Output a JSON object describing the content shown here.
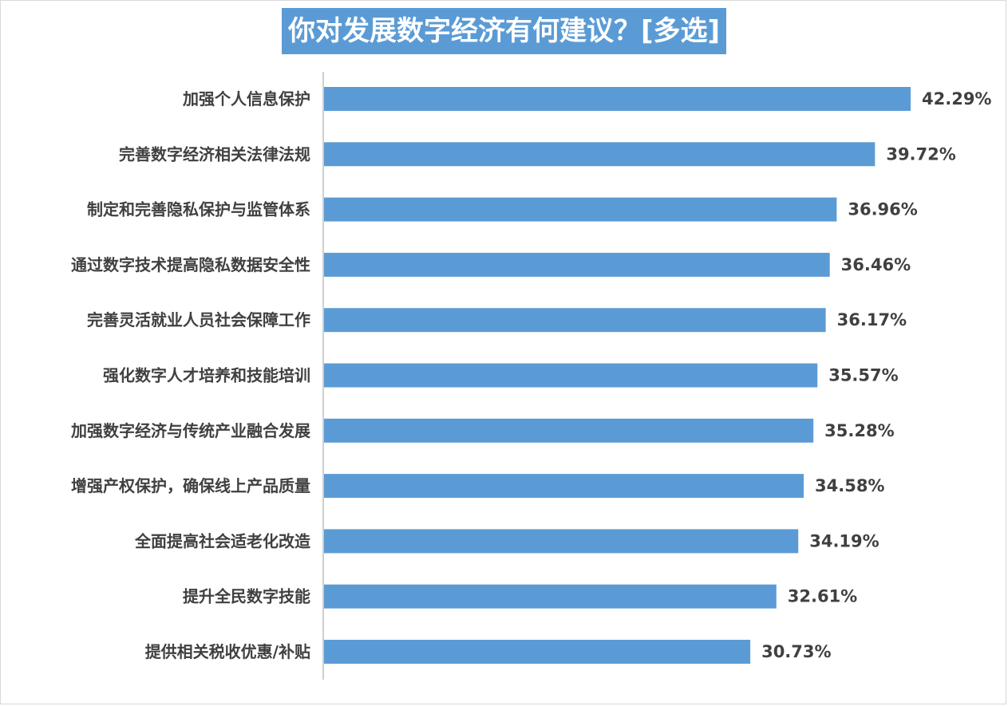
{
  "colors": {
    "bar": "#5b9bd5",
    "title_bg": "#5b9bd5",
    "title_text": "#ffffff",
    "label_text": "#404040",
    "axis": "#bfbfbf"
  },
  "chart_data": {
    "type": "bar",
    "orientation": "horizontal",
    "title": "你对发展数字经济有何建议？[多选]",
    "categories": [
      "加强个人信息保护",
      "完善数字经济相关法律法规",
      "制定和完善隐私保护与监管体系",
      "通过数字技术提高隐私数据安全性",
      "完善灵活就业人员社会保障工作",
      "强化数字人才培养和技能培训",
      "加强数字经济与传统产业融合发展",
      "增强产权保护，确保线上产品质量",
      "全面提高社会适老化改造",
      "提升全民数字技能",
      "提供相关税收优惠/补贴"
    ],
    "values": [
      42.29,
      39.72,
      36.96,
      36.46,
      36.17,
      35.57,
      35.28,
      34.58,
      34.19,
      32.61,
      30.73
    ],
    "value_labels": [
      "42.29%",
      "39.72%",
      "36.96%",
      "36.46%",
      "36.17%",
      "35.57%",
      "35.28%",
      "34.58%",
      "34.19%",
      "32.61%",
      "30.73%"
    ],
    "unit": "%",
    "xlim": [
      0,
      42.29
    ],
    "grid": false,
    "legend": "none"
  }
}
